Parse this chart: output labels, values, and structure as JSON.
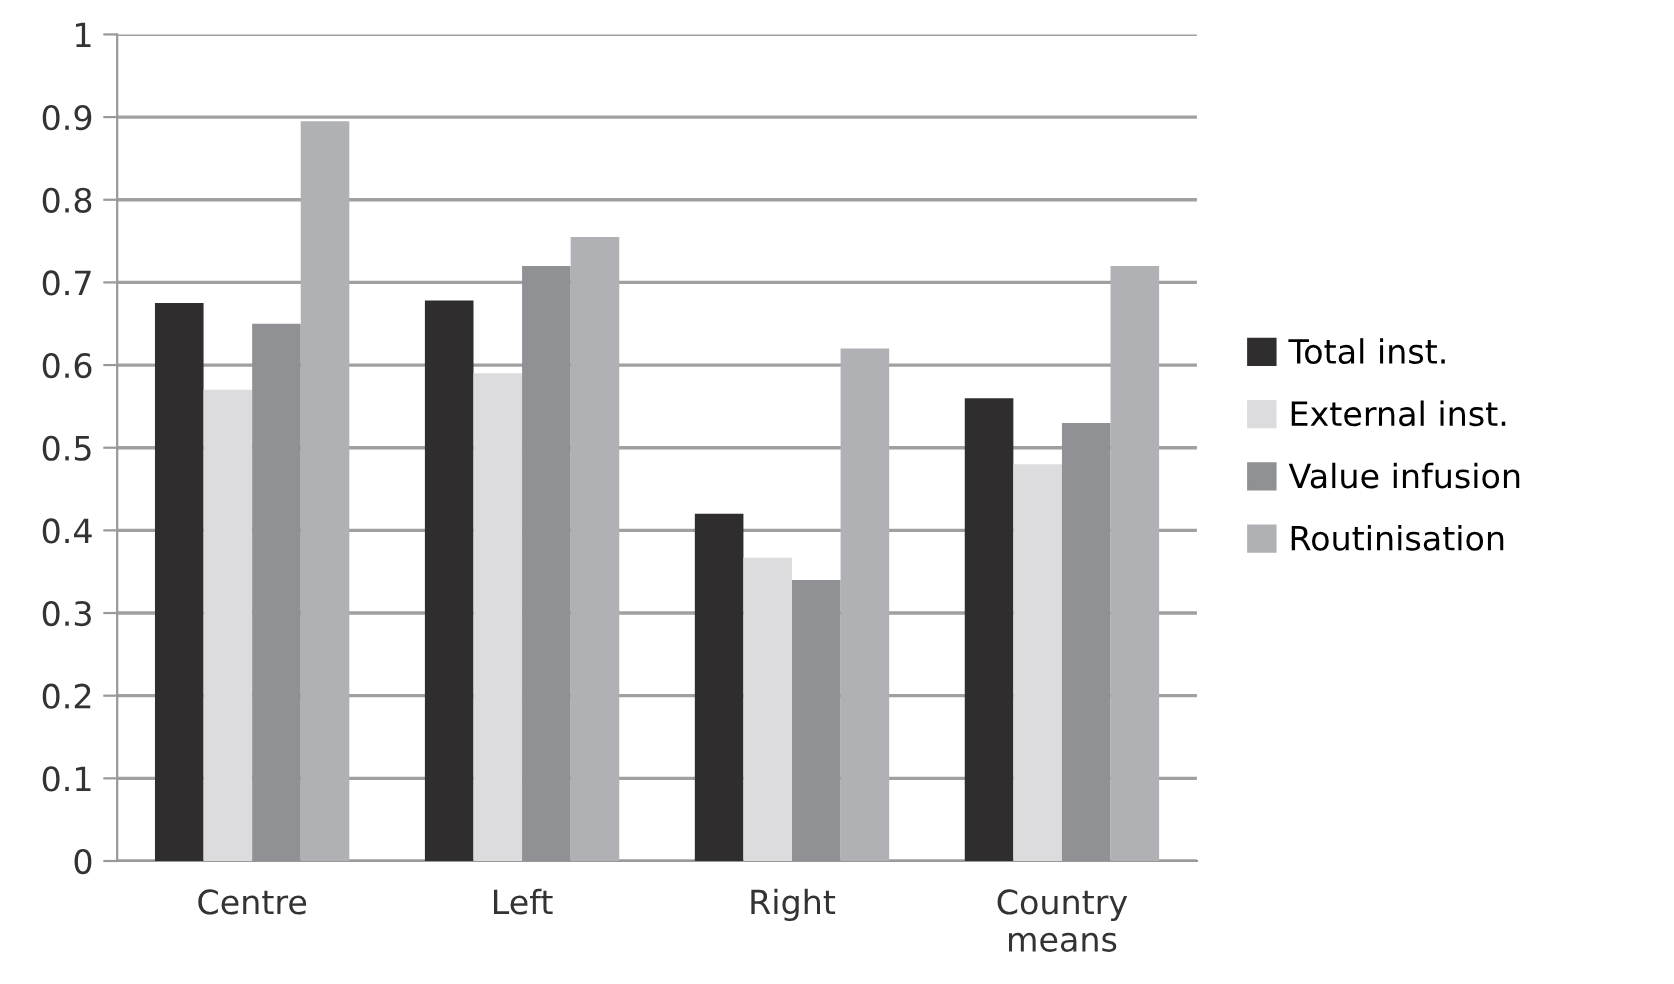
{
  "chart_data": {
    "type": "bar",
    "categories": [
      "Centre",
      "Left",
      "Right",
      "Country\nmeans"
    ],
    "series": [
      {
        "name": "Total inst.",
        "color": "#2f2d2e",
        "values": [
          0.675,
          0.678,
          0.42,
          0.56
        ]
      },
      {
        "name": "External inst.",
        "color": "#dcdcde",
        "values": [
          0.57,
          0.59,
          0.367,
          0.48
        ]
      },
      {
        "name": "Value infusion",
        "color": "#909194",
        "values": [
          0.65,
          0.72,
          0.34,
          0.53
        ]
      },
      {
        "name": "Routinisation",
        "color": "#b0b1b4",
        "values": [
          0.895,
          0.755,
          0.62,
          0.72
        ]
      }
    ],
    "ylim": [
      0,
      1
    ],
    "yticks": [
      0,
      0.1,
      0.2,
      0.3,
      0.4,
      0.5,
      0.6,
      0.7,
      0.8,
      0.9,
      1
    ],
    "grid": "y",
    "legend": "right"
  }
}
